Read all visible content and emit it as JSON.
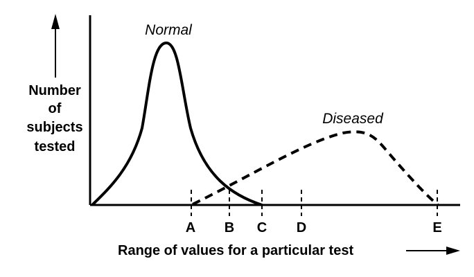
{
  "y_axis_label": [
    "Number",
    "of",
    "subjects",
    "tested"
  ],
  "x_axis_label": "Range of values for a particular test",
  "curves": {
    "normal": {
      "label": "Normal"
    },
    "diseased": {
      "label": "Diseased"
    }
  },
  "markers": [
    "A",
    "B",
    "C",
    "D",
    "E"
  ],
  "colors": {
    "ink": "#000000",
    "background": "#ffffff"
  }
}
